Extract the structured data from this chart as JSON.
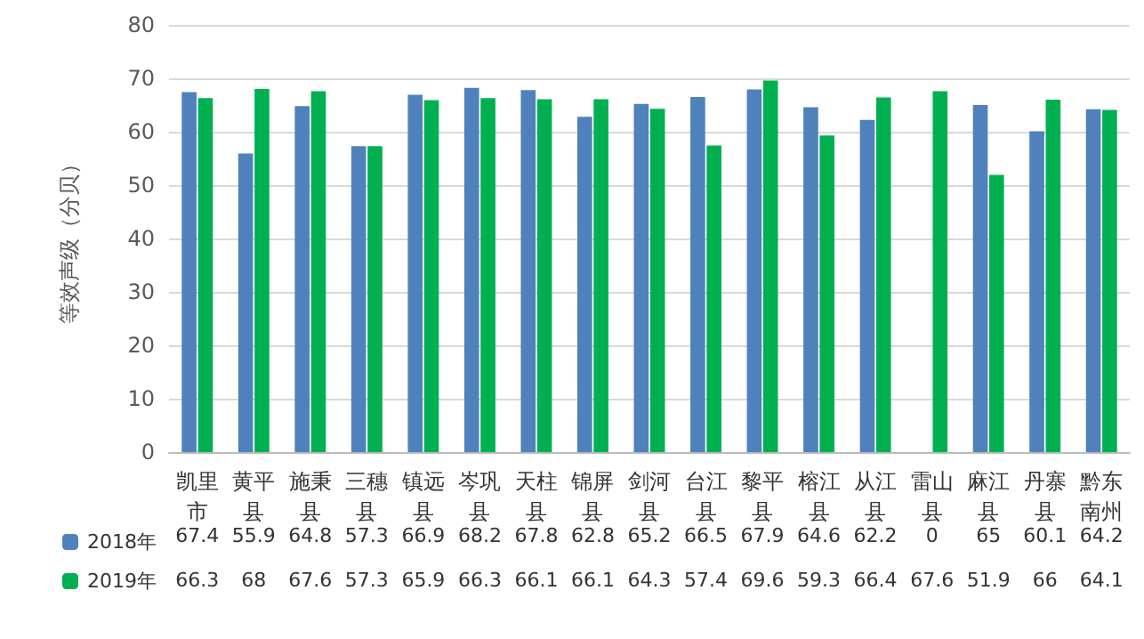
{
  "chart_data": {
    "type": "bar",
    "ylabel": "等效声级（分贝）",
    "categories": [
      "凯里市",
      "黄平县",
      "施秉县",
      "三穗县",
      "镇远县",
      "岑巩县",
      "天柱县",
      "锦屏县",
      "剑河县",
      "台江县",
      "黎平县",
      "榕江县",
      "从江县",
      "雷山县",
      "麻江县",
      "丹寨县",
      "黔东南州"
    ],
    "series": [
      {
        "name": "2018年",
        "color": "#4f81bd",
        "values": [
          67.4,
          55.9,
          64.8,
          57.3,
          66.9,
          68.2,
          67.8,
          62.8,
          65.2,
          66.5,
          67.9,
          64.6,
          62.2,
          0,
          65,
          60.1,
          64.2
        ]
      },
      {
        "name": "2019年",
        "color": "#00b050",
        "values": [
          66.3,
          68,
          67.6,
          57.3,
          65.9,
          66.3,
          66.1,
          66.1,
          64.3,
          57.4,
          69.6,
          59.3,
          66.4,
          67.6,
          51.9,
          66,
          64.1
        ]
      }
    ],
    "ylim": [
      0,
      80
    ],
    "yticks": [
      0,
      10,
      20,
      30,
      40,
      50,
      60,
      70,
      80
    ],
    "grid": "y",
    "legend": "bottom left",
    "data_labels": true
  }
}
